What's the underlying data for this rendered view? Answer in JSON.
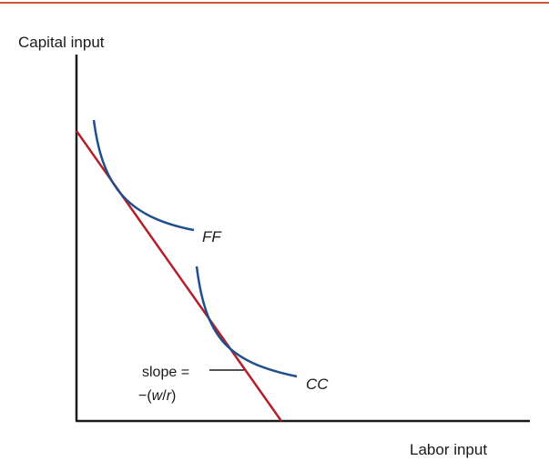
{
  "colors": {
    "top_rule": "#c8553c",
    "axes": "#1a1a1a",
    "isoquant": "#1f4e8c",
    "isocost_line": "#b3202a",
    "text": "#1a1a1a"
  },
  "axes": {
    "y_label": "Capital input",
    "x_label": "Labor input"
  },
  "curves": {
    "ff_label": "FF",
    "cc_label": "CC"
  },
  "annotation": {
    "slope_line1": "slope =",
    "slope_prefix": "−(",
    "slope_w": "w",
    "slope_slash": "/",
    "slope_r": "r",
    "slope_suffix": ")"
  }
}
